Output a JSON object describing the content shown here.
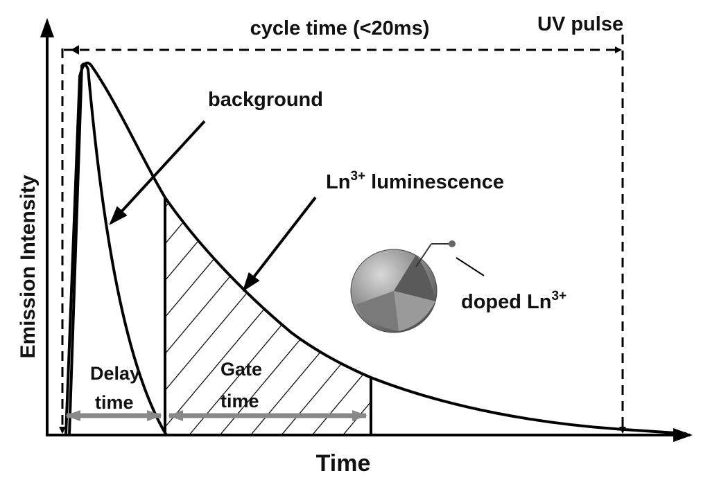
{
  "axes": {
    "y_label": "Emission Intensity",
    "x_label": "Time"
  },
  "cycle_label": "cycle time (<20ms)",
  "pulse_label": "UV  pulse",
  "background_label": "background",
  "luminescence_label": {
    "base": "Ln",
    "sup": "3+",
    "rest": " luminescence"
  },
  "delay_label": [
    "Delay",
    "time"
  ],
  "gate_label": [
    "Gate",
    "time"
  ],
  "doped_label": {
    "base": "doped Ln",
    "sup": "3+"
  }
}
